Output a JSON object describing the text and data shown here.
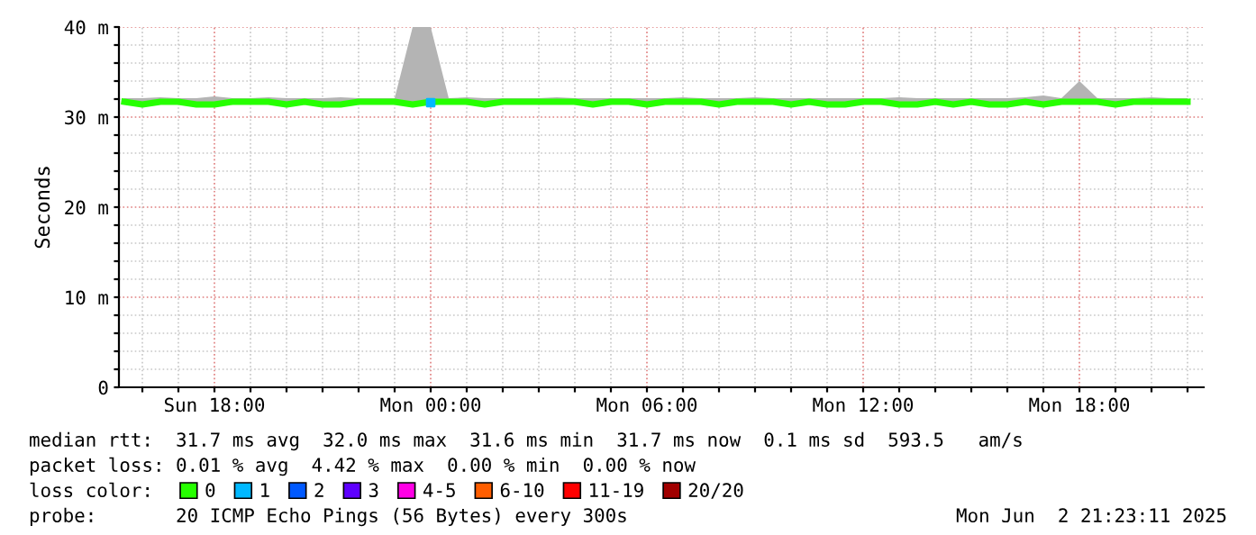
{
  "chart_data": {
    "type": "line",
    "ylabel": "Seconds",
    "legend_title": "loss color:",
    "legend": "bottom",
    "grid": true,
    "marker": "none",
    "line_style": "solid",
    "x": [
      "2025-06-01T15:30",
      "2025-06-01T16:00",
      "2025-06-01T16:30",
      "2025-06-01T17:00",
      "2025-06-01T17:30",
      "2025-06-01T18:00",
      "2025-06-01T18:30",
      "2025-06-01T19:00",
      "2025-06-01T19:30",
      "2025-06-01T20:00",
      "2025-06-01T20:30",
      "2025-06-01T21:00",
      "2025-06-01T21:30",
      "2025-06-01T22:00",
      "2025-06-01T22:30",
      "2025-06-01T23:00",
      "2025-06-01T23:30",
      "2025-06-02T00:00",
      "2025-06-02T00:30",
      "2025-06-02T01:00",
      "2025-06-02T01:30",
      "2025-06-02T02:00",
      "2025-06-02T02:30",
      "2025-06-02T03:00",
      "2025-06-02T03:30",
      "2025-06-02T04:00",
      "2025-06-02T04:30",
      "2025-06-02T05:00",
      "2025-06-02T05:30",
      "2025-06-02T06:00",
      "2025-06-02T06:30",
      "2025-06-02T07:00",
      "2025-06-02T07:30",
      "2025-06-02T08:00",
      "2025-06-02T08:30",
      "2025-06-02T09:00",
      "2025-06-02T09:30",
      "2025-06-02T10:00",
      "2025-06-02T10:30",
      "2025-06-02T11:00",
      "2025-06-02T11:30",
      "2025-06-02T12:00",
      "2025-06-02T12:30",
      "2025-06-02T13:00",
      "2025-06-02T13:30",
      "2025-06-02T14:00",
      "2025-06-02T14:30",
      "2025-06-02T15:00",
      "2025-06-02T15:30",
      "2025-06-02T16:00",
      "2025-06-02T16:30",
      "2025-06-02T17:00",
      "2025-06-02T17:30",
      "2025-06-02T18:00",
      "2025-06-02T18:30",
      "2025-06-02T19:00",
      "2025-06-02T19:30",
      "2025-06-02T20:00",
      "2025-06-02T20:30",
      "2025-06-02T21:00"
    ],
    "xlim": [
      "2025-06-01T15:21",
      "2025-06-02T21:27"
    ],
    "ylim": [
      0,
      40
    ],
    "xticks": [
      {
        "value": "2025-06-01T16:00",
        "label": null
      },
      {
        "value": "2025-06-01T17:00",
        "label": null
      },
      {
        "value": "2025-06-01T18:00",
        "label": "Sun 18:00"
      },
      {
        "value": "2025-06-01T19:00",
        "label": null
      },
      {
        "value": "2025-06-01T20:00",
        "label": null
      },
      {
        "value": "2025-06-01T21:00",
        "label": null
      },
      {
        "value": "2025-06-01T22:00",
        "label": null
      },
      {
        "value": "2025-06-01T23:00",
        "label": null
      },
      {
        "value": "2025-06-02T00:00",
        "label": "Mon 00:00"
      },
      {
        "value": "2025-06-02T01:00",
        "label": null
      },
      {
        "value": "2025-06-02T02:00",
        "label": null
      },
      {
        "value": "2025-06-02T03:00",
        "label": null
      },
      {
        "value": "2025-06-02T04:00",
        "label": null
      },
      {
        "value": "2025-06-02T05:00",
        "label": null
      },
      {
        "value": "2025-06-02T06:00",
        "label": "Mon 06:00"
      },
      {
        "value": "2025-06-02T07:00",
        "label": null
      },
      {
        "value": "2025-06-02T08:00",
        "label": null
      },
      {
        "value": "2025-06-02T09:00",
        "label": null
      },
      {
        "value": "2025-06-02T10:00",
        "label": null
      },
      {
        "value": "2025-06-02T11:00",
        "label": null
      },
      {
        "value": "2025-06-02T12:00",
        "label": "Mon 12:00"
      },
      {
        "value": "2025-06-02T13:00",
        "label": null
      },
      {
        "value": "2025-06-02T14:00",
        "label": null
      },
      {
        "value": "2025-06-02T15:00",
        "label": null
      },
      {
        "value": "2025-06-02T16:00",
        "label": null
      },
      {
        "value": "2025-06-02T17:00",
        "label": null
      },
      {
        "value": "2025-06-02T18:00",
        "label": "Mon 18:00"
      },
      {
        "value": "2025-06-02T19:00",
        "label": null
      },
      {
        "value": "2025-06-02T20:00",
        "label": null
      },
      {
        "value": "2025-06-02T21:00",
        "label": null
      }
    ],
    "yticks": [
      0,
      {
        "value": 2,
        "label": null
      },
      {
        "value": 4,
        "label": null
      },
      {
        "value": 6,
        "label": null
      },
      {
        "value": 8,
        "label": null
      },
      {
        "value": 10,
        "label": "10 m"
      },
      {
        "value": 12,
        "label": null
      },
      {
        "value": 14,
        "label": null
      },
      {
        "value": 16,
        "label": null
      },
      {
        "value": 18,
        "label": null
      },
      {
        "value": 20,
        "label": "20 m"
      },
      {
        "value": 22,
        "label": null
      },
      {
        "value": 24,
        "label": null
      },
      {
        "value": 26,
        "label": null
      },
      {
        "value": 28,
        "label": null
      },
      {
        "value": 30,
        "label": "30 m"
      },
      {
        "value": 32,
        "label": null
      },
      {
        "value": 34,
        "label": null
      },
      {
        "value": 36,
        "label": null
      },
      {
        "value": 38,
        "label": null
      },
      {
        "value": 40,
        "label": "40 m"
      }
    ],
    "series": [
      {
        "name": "0",
        "color": "#26ff00",
        "values": [
          31.7,
          31.4,
          31.7,
          31.7,
          31.4,
          31.4,
          31.7,
          31.7,
          31.7,
          31.4,
          31.7,
          31.4,
          31.4,
          31.7,
          31.7,
          31.7,
          31.4,
          31.7,
          31.7,
          31.7,
          31.4,
          31.7,
          31.7,
          31.7,
          31.7,
          31.7,
          31.4,
          31.7,
          31.7,
          31.4,
          31.7,
          31.7,
          31.7,
          31.4,
          31.7,
          31.7,
          31.7,
          31.4,
          31.7,
          31.4,
          31.4,
          31.7,
          31.7,
          31.4,
          31.4,
          31.7,
          31.4,
          31.7,
          31.4,
          31.4,
          31.7,
          31.4,
          31.7,
          31.7,
          31.7,
          31.4,
          31.7,
          31.7,
          31.7,
          31.7
        ],
        "lower": [
          31.5,
          31.3,
          31.5,
          31.5,
          31.3,
          31.3,
          31.5,
          31.5,
          31.5,
          31.3,
          31.5,
          31.3,
          31.3,
          31.5,
          31.5,
          31.5,
          31.3,
          31.3,
          31.5,
          31.5,
          31.3,
          31.5,
          31.5,
          31.5,
          31.5,
          31.5,
          31.3,
          31.5,
          31.5,
          31.3,
          31.5,
          31.5,
          31.5,
          31.3,
          31.5,
          31.5,
          31.5,
          31.3,
          31.5,
          31.3,
          31.3,
          31.5,
          31.5,
          31.3,
          31.3,
          31.5,
          31.3,
          31.5,
          31.3,
          31.3,
          31.5,
          31.3,
          31.5,
          31.5,
          31.5,
          31.3,
          31.5,
          31.5,
          31.5,
          31.5
        ],
        "upper": [
          32.1,
          32.1,
          32.2,
          32.1,
          32.1,
          32.3,
          32.1,
          32.1,
          32.2,
          32.1,
          32.1,
          32.1,
          32.2,
          32.1,
          32.1,
          32.1,
          40,
          40,
          32.1,
          32.2,
          32.1,
          32.1,
          32.1,
          32.1,
          32.2,
          32.1,
          32.1,
          32.1,
          32.1,
          32.1,
          32.1,
          32.2,
          32.1,
          32.1,
          32.1,
          32.2,
          32.1,
          32.1,
          32.1,
          32.1,
          32.1,
          32.1,
          32.1,
          32.2,
          32.1,
          32.1,
          32.1,
          32.1,
          32.1,
          32.1,
          32.2,
          32.4,
          32.1,
          34,
          32.1,
          32.1,
          32.1,
          32.2,
          32.1,
          32.1
        ]
      },
      {
        "name": "1",
        "type": "scatter",
        "marker": "square",
        "color": "#00b8ff",
        "values": [
          null,
          null,
          null,
          null,
          null,
          null,
          null,
          null,
          null,
          null,
          null,
          null,
          null,
          null,
          null,
          null,
          null,
          31.6,
          null,
          null,
          null,
          null,
          null,
          null,
          null,
          null,
          null,
          null,
          null,
          null,
          null,
          null,
          null,
          null,
          null,
          null,
          null,
          null,
          null,
          null,
          null,
          null,
          null,
          null,
          null,
          null,
          null,
          null,
          null,
          null,
          null,
          null,
          null,
          null,
          null,
          null,
          null,
          null,
          null,
          null
        ]
      },
      {
        "name": "2",
        "type": "scatter",
        "color": "#0059ff",
        "values": [
          null,
          null,
          null,
          null,
          null,
          null,
          null,
          null,
          null,
          null,
          null,
          null,
          null,
          null,
          null,
          null,
          null,
          null,
          null,
          null,
          null,
          null,
          null,
          null,
          null,
          null,
          null,
          null,
          null,
          null,
          null,
          null,
          null,
          null,
          null,
          null,
          null,
          null,
          null,
          null,
          null,
          null,
          null,
          null,
          null,
          null,
          null,
          null,
          null,
          null,
          null,
          null,
          null,
          null,
          null,
          null,
          null,
          null,
          null,
          null
        ]
      },
      {
        "name": "3",
        "type": "scatter",
        "color": "#5e00ff",
        "values": [
          null,
          null,
          null,
          null,
          null,
          null,
          null,
          null,
          null,
          null,
          null,
          null,
          null,
          null,
          null,
          null,
          null,
          null,
          null,
          null,
          null,
          null,
          null,
          null,
          null,
          null,
          null,
          null,
          null,
          null,
          null,
          null,
          null,
          null,
          null,
          null,
          null,
          null,
          null,
          null,
          null,
          null,
          null,
          null,
          null,
          null,
          null,
          null,
          null,
          null,
          null,
          null,
          null,
          null,
          null,
          null,
          null,
          null,
          null,
          null
        ]
      },
      {
        "name": "4-5",
        "type": "scatter",
        "color": "#ff00e6",
        "values": [
          null,
          null,
          null,
          null,
          null,
          null,
          null,
          null,
          null,
          null,
          null,
          null,
          null,
          null,
          null,
          null,
          null,
          null,
          null,
          null,
          null,
          null,
          null,
          null,
          null,
          null,
          null,
          null,
          null,
          null,
          null,
          null,
          null,
          null,
          null,
          null,
          null,
          null,
          null,
          null,
          null,
          null,
          null,
          null,
          null,
          null,
          null,
          null,
          null,
          null,
          null,
          null,
          null,
          null,
          null,
          null,
          null,
          null,
          null,
          null
        ]
      },
      {
        "name": "6-10",
        "type": "scatter",
        "color": "#ff5e00",
        "values": [
          null,
          null,
          null,
          null,
          null,
          null,
          null,
          null,
          null,
          null,
          null,
          null,
          null,
          null,
          null,
          null,
          null,
          null,
          null,
          null,
          null,
          null,
          null,
          null,
          null,
          null,
          null,
          null,
          null,
          null,
          null,
          null,
          null,
          null,
          null,
          null,
          null,
          null,
          null,
          null,
          null,
          null,
          null,
          null,
          null,
          null,
          null,
          null,
          null,
          null,
          null,
          null,
          null,
          null,
          null,
          null,
          null,
          null,
          null,
          null
        ]
      },
      {
        "name": "11-19",
        "type": "scatter",
        "color": "#ff0000",
        "values": [
          null,
          null,
          null,
          null,
          null,
          null,
          null,
          null,
          null,
          null,
          null,
          null,
          null,
          null,
          null,
          null,
          null,
          null,
          null,
          null,
          null,
          null,
          null,
          null,
          null,
          null,
          null,
          null,
          null,
          null,
          null,
          null,
          null,
          null,
          null,
          null,
          null,
          null,
          null,
          null,
          null,
          null,
          null,
          null,
          null,
          null,
          null,
          null,
          null,
          null,
          null,
          null,
          null,
          null,
          null,
          null,
          null,
          null,
          null,
          null
        ]
      },
      {
        "name": "20/20",
        "type": "scatter",
        "color": "#a10000",
        "values": [
          null,
          null,
          null,
          null,
          null,
          null,
          null,
          null,
          null,
          null,
          null,
          null,
          null,
          null,
          null,
          null,
          null,
          null,
          null,
          null,
          null,
          null,
          null,
          null,
          null,
          null,
          null,
          null,
          null,
          null,
          null,
          null,
          null,
          null,
          null,
          null,
          null,
          null,
          null,
          null,
          null,
          null,
          null,
          null,
          null,
          null,
          null,
          null,
          null,
          null,
          null,
          null,
          null,
          null,
          null,
          null,
          null,
          null,
          null,
          null
        ]
      }
    ],
    "annotations": [
      "median rtt:  31.7 ms avg  32.0 ms max  31.6 ms min  31.7 ms now  0.1 ms sd  593.5   am/s",
      "packet loss: 0.01 % avg  4.42 % max  0.00 % min  0.00 % now",
      "probe:       20 ICMP Echo Pings (56 Bytes) every 300s",
      "Mon Jun  2 21:23:11 2025"
    ]
  }
}
